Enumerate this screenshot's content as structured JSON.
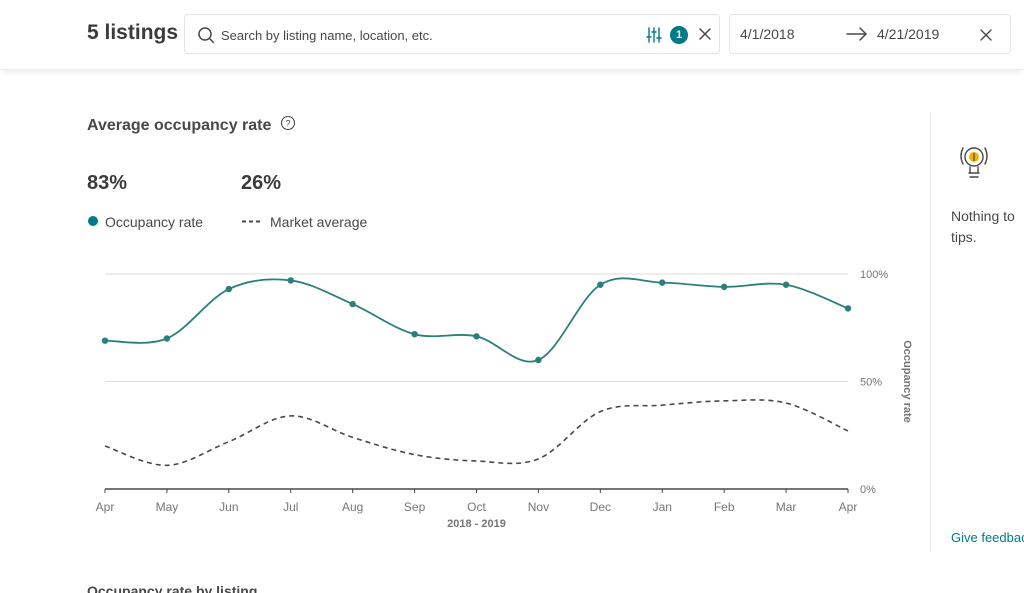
{
  "header": {
    "listing_count": "5 listings",
    "search": {
      "placeholder": "Search by listing name, location, etc.",
      "value": "",
      "filter_count": "1"
    },
    "dates": {
      "start": "4/1/2018",
      "end": "4/21/2019"
    }
  },
  "section": {
    "title": "Average occupancy rate",
    "stats": {
      "occupancy": "83%",
      "market": "26%"
    },
    "legend": {
      "occupancy": "Occupancy rate",
      "market": "Market average"
    }
  },
  "chart_data": {
    "type": "line",
    "categories": [
      "Apr",
      "May",
      "Jun",
      "Jul",
      "Aug",
      "Sep",
      "Oct",
      "Nov",
      "Dec",
      "Jan",
      "Feb",
      "Mar",
      "Apr"
    ],
    "xlabel": "2018 - 2019",
    "ylabel": "Occupancy rate",
    "ylim": [
      0,
      100
    ],
    "yticks": [
      "0%",
      "50%",
      "100%"
    ],
    "grid": true,
    "series": [
      {
        "name": "Occupancy rate",
        "style": "solid",
        "color": "#2a7f7a",
        "values": [
          69,
          70,
          93,
          97,
          86,
          72,
          71,
          60,
          95,
          96,
          94,
          95,
          84
        ]
      },
      {
        "name": "Market average",
        "style": "dashed",
        "color": "#484848",
        "values": [
          20,
          11,
          22,
          34,
          24,
          16,
          13,
          14,
          36,
          39,
          41,
          40,
          27
        ]
      }
    ]
  },
  "sidebar": {
    "tips_text": "Nothing to tips.",
    "feedback": "Give feedback"
  },
  "next_section": {
    "title": "Occupancy rate by listing"
  },
  "colors": {
    "accent": "#007a87",
    "line": "#2a7f7a",
    "text": "#484848"
  }
}
